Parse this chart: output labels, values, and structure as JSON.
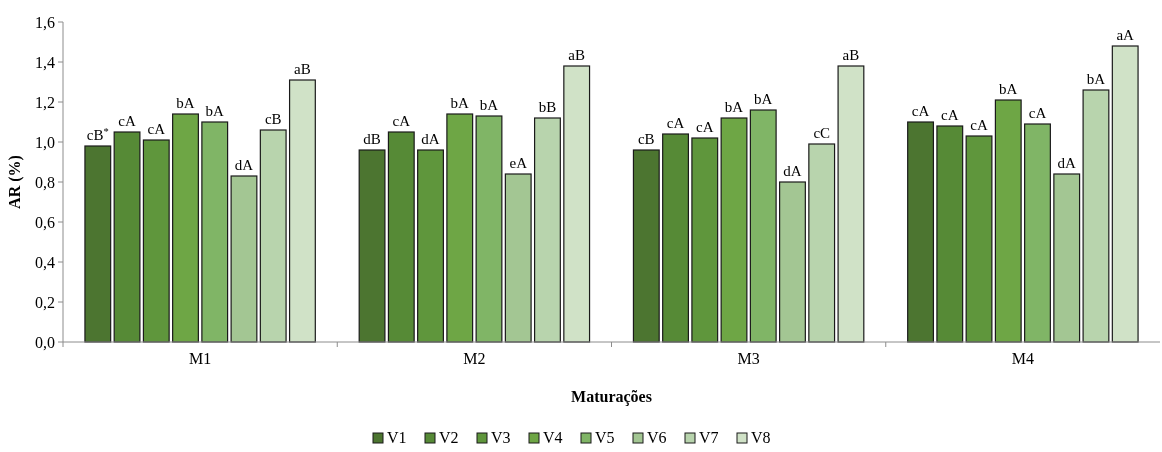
{
  "chart_data": {
    "type": "bar",
    "xlabel": "Maturações",
    "ylabel": "AR (%)",
    "categories": [
      "M1",
      "M2",
      "M3",
      "M4"
    ],
    "ylim": [
      0,
      1.6
    ],
    "yticks": [
      {
        "value": 0,
        "label": "0,0"
      },
      {
        "value": 0.2,
        "label": "0,2"
      },
      {
        "value": 0.4,
        "label": "0,4"
      },
      {
        "value": 0.6,
        "label": "0,6"
      },
      {
        "value": 0.8,
        "label": "0,8"
      },
      {
        "value": 1,
        "label": "1,0"
      },
      {
        "value": 1.2,
        "label": "1,2"
      },
      {
        "value": 1.4,
        "label": "1,4"
      },
      {
        "value": 1.6,
        "label": "1,6"
      }
    ],
    "grid": false,
    "legend": "bottom",
    "series": [
      {
        "name": "V1",
        "color": "#4c7530",
        "values": [
          0.98,
          0.96,
          0.96,
          1.1
        ],
        "value_labels": [
          "cB$^{*}$",
          "dB",
          "cB",
          "cA"
        ]
      },
      {
        "name": "V2",
        "color": "#568a36",
        "values": [
          1.05,
          1.05,
          1.04,
          1.08
        ],
        "value_labels": [
          "cA",
          "cA",
          "cA",
          "cA"
        ]
      },
      {
        "name": "V3",
        "color": "#5f963c",
        "values": [
          1.01,
          0.96,
          1.02,
          1.03
        ],
        "value_labels": [
          "cA",
          "dA",
          "cA",
          "cA"
        ]
      },
      {
        "name": "V4",
        "color": "#6ea645",
        "values": [
          1.14,
          1.14,
          1.12,
          1.21
        ],
        "value_labels": [
          "bA",
          "bA",
          "bA",
          "bA"
        ]
      },
      {
        "name": "V5",
        "color": "#80b566",
        "values": [
          1.1,
          1.13,
          1.16,
          1.09
        ],
        "value_labels": [
          "bA",
          "bA",
          "bA",
          "cA"
        ]
      },
      {
        "name": "V6",
        "color": "#a3c693",
        "values": [
          0.83,
          0.84,
          0.8,
          0.84
        ],
        "value_labels": [
          "dA",
          "eA",
          "dA",
          "dA"
        ]
      },
      {
        "name": "V7",
        "color": "#b8d4ad",
        "values": [
          1.06,
          1.12,
          0.99,
          1.26
        ],
        "value_labels": [
          "cB",
          "bB",
          "cC",
          "bA"
        ]
      },
      {
        "name": "V8",
        "color": "#d0e2c7",
        "values": [
          1.31,
          1.38,
          1.38,
          1.48
        ],
        "value_labels": [
          "aB",
          "aB",
          "aB",
          "aA"
        ]
      }
    ]
  }
}
